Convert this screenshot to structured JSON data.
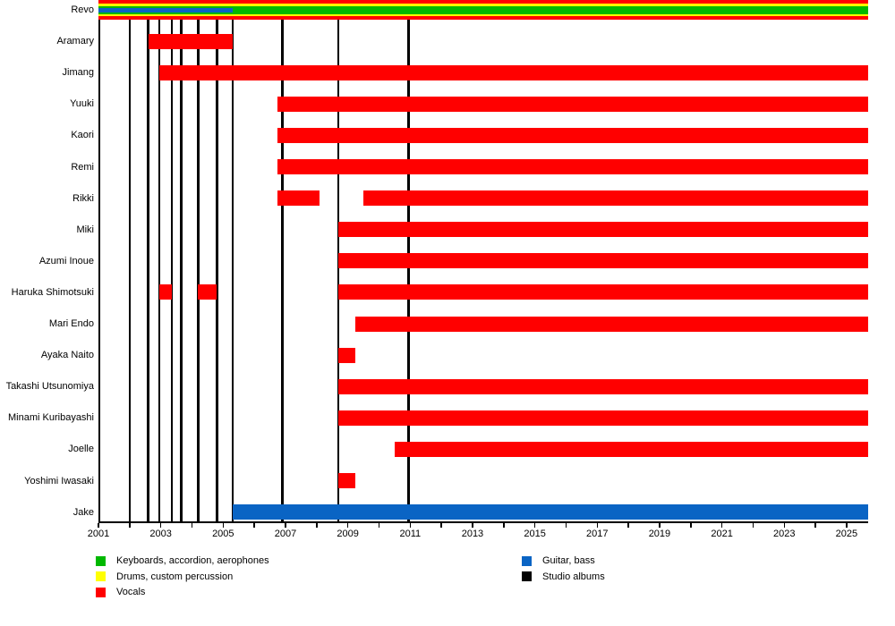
{
  "chart_data": {
    "type": "bar",
    "variant": "band-membership-gantt-timeline",
    "grid": false,
    "x_axis": {
      "min": 2001,
      "max": 2025.7,
      "tick_interval_years": 1,
      "labeled_years": [
        2001,
        2003,
        2005,
        2007,
        2009,
        2011,
        2013,
        2015,
        2017,
        2019,
        2021,
        2023,
        2025
      ]
    },
    "colors": {
      "vocals": "#FF0000",
      "keyboards": "#00B800",
      "drums": "#FFFF00",
      "guitar_bass": "#0A64C4",
      "albums": "#000000"
    },
    "legend": {
      "position": "bottom",
      "left_column": [
        {
          "role": "keyboards",
          "color": "#00B800",
          "label": "Keyboards, accordion, aerophones"
        },
        {
          "role": "drums",
          "color": "#FFFF00",
          "label": "Drums, custom percussion"
        },
        {
          "role": "vocals",
          "color": "#FF0000",
          "label": "Vocals"
        }
      ],
      "right_column": [
        {
          "role": "guitar_bass",
          "color": "#0A64C4",
          "label": "Guitar, bass"
        },
        {
          "role": "albums",
          "color": "#000000",
          "label": "Studio albums"
        }
      ]
    },
    "studio_album_markers_years": [
      2002.0,
      2002.6,
      2002.95,
      2003.35,
      2003.65,
      2004.2,
      2004.8,
      2005.3,
      2006.9,
      2008.7,
      2010.95
    ],
    "members": [
      {
        "name": "Revo",
        "bars": [
          {
            "role": "vocals",
            "start": 2001.0,
            "end": 2025.7,
            "thickness": 22
          },
          {
            "role": "drums",
            "start": 2001.0,
            "end": 2025.7,
            "thickness": 14
          },
          {
            "role": "keyboards",
            "start": 2001.0,
            "end": 2025.7,
            "thickness": 9
          },
          {
            "role": "guitar_bass",
            "start": 2001.0,
            "end": 2005.3,
            "thickness": 5
          }
        ]
      },
      {
        "name": "Aramary",
        "bars": [
          {
            "role": "vocals",
            "start": 2002.6,
            "end": 2005.3
          }
        ]
      },
      {
        "name": "Jimang",
        "bars": [
          {
            "role": "vocals",
            "start": 2002.95,
            "end": 2025.7
          }
        ]
      },
      {
        "name": "Yuuki",
        "bars": [
          {
            "role": "vocals",
            "start": 2006.75,
            "end": 2025.7
          }
        ]
      },
      {
        "name": "Kaori",
        "bars": [
          {
            "role": "vocals",
            "start": 2006.75,
            "end": 2025.7
          }
        ]
      },
      {
        "name": "Remi",
        "bars": [
          {
            "role": "vocals",
            "start": 2006.75,
            "end": 2025.7
          }
        ]
      },
      {
        "name": "Rikki",
        "bars": [
          {
            "role": "vocals",
            "start": 2006.75,
            "end": 2008.1
          },
          {
            "role": "vocals",
            "start": 2009.5,
            "end": 2025.7
          }
        ]
      },
      {
        "name": "Miki",
        "bars": [
          {
            "role": "vocals",
            "start": 2008.7,
            "end": 2025.7
          }
        ]
      },
      {
        "name": "Azumi Inoue",
        "bars": [
          {
            "role": "vocals",
            "start": 2008.7,
            "end": 2025.7
          }
        ]
      },
      {
        "name": "Haruka Shimotsuki",
        "bars": [
          {
            "role": "vocals",
            "start": 2002.95,
            "end": 2003.35
          },
          {
            "role": "vocals",
            "start": 2004.2,
            "end": 2004.8
          },
          {
            "role": "vocals",
            "start": 2008.7,
            "end": 2025.7
          }
        ]
      },
      {
        "name": "Mari Endo",
        "bars": [
          {
            "role": "vocals",
            "start": 2009.25,
            "end": 2025.7
          }
        ]
      },
      {
        "name": "Ayaka Naito",
        "bars": [
          {
            "role": "vocals",
            "start": 2008.7,
            "end": 2009.25
          }
        ]
      },
      {
        "name": "Takashi Utsunomiya",
        "bars": [
          {
            "role": "vocals",
            "start": 2008.7,
            "end": 2025.7
          }
        ]
      },
      {
        "name": "Minami Kuribayashi",
        "bars": [
          {
            "role": "vocals",
            "start": 2008.7,
            "end": 2025.7
          }
        ]
      },
      {
        "name": "Joelle",
        "bars": [
          {
            "role": "vocals",
            "start": 2010.5,
            "end": 2025.7
          }
        ]
      },
      {
        "name": "Yoshimi Iwasaki",
        "bars": [
          {
            "role": "vocals",
            "start": 2008.7,
            "end": 2009.25
          }
        ]
      },
      {
        "name": "Jake",
        "bars": [
          {
            "role": "guitar_bass",
            "start": 2005.3,
            "end": 2025.7
          }
        ]
      }
    ]
  }
}
